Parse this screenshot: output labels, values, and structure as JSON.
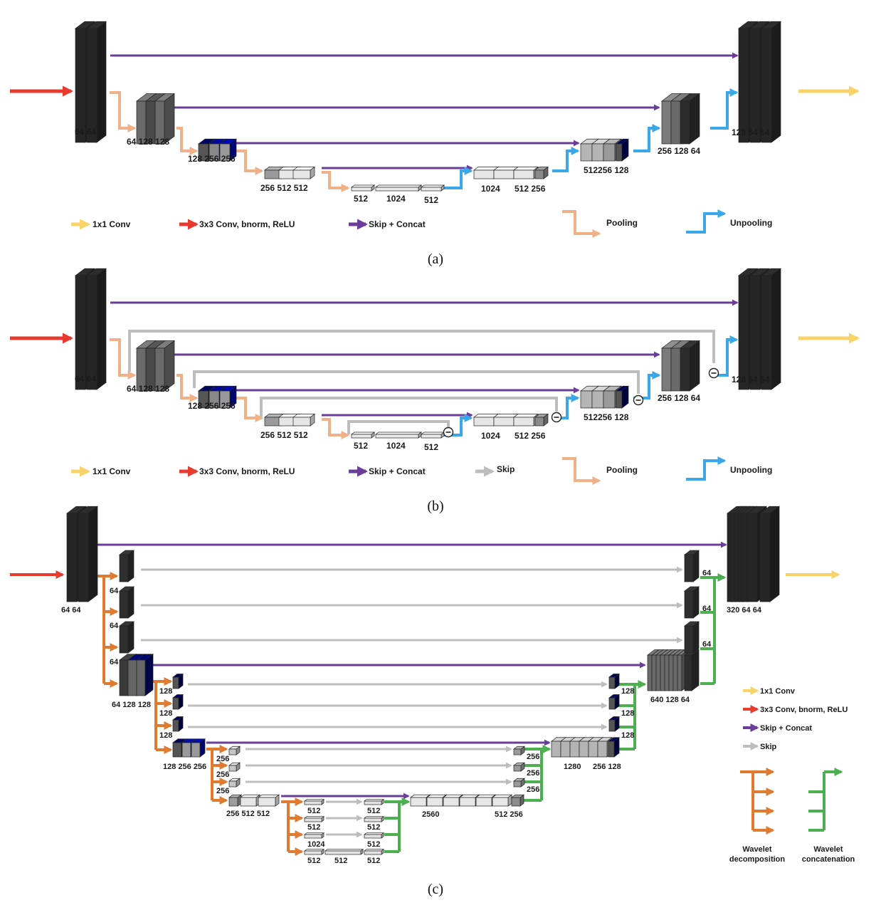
{
  "panels": [
    {
      "caption": "(a)",
      "legend": [
        "1x1 Conv",
        "3x3 Conv, bnorm, ReLU",
        "Skip + Concat",
        "Pooling",
        "Unpooling"
      ],
      "labels": [
        "64 64",
        "64 128 128",
        "128 256 256",
        "256 512 512",
        "512",
        "1024",
        "512",
        "1024",
        "512 256",
        "512256 128",
        "256 128 64",
        "128 64 64"
      ]
    },
    {
      "caption": "(b)",
      "legend": [
        "1x1 Conv",
        "3x3 Conv, bnorm, ReLU",
        "Skip + Concat",
        "Skip",
        "Pooling",
        "Unpooling"
      ],
      "labels": [
        "64 64",
        "64 128 128",
        "128 256 256",
        "256 512 512",
        "512",
        "1024",
        "512",
        "1024",
        "512 256",
        "512256 128",
        "256 128 64",
        "128 64 64"
      ]
    },
    {
      "caption": "(c)",
      "legend": [
        "1x1 Conv",
        "3x3 Conv, bnorm, ReLU",
        "Skip + Concat",
        "Skip",
        "Wavelet decomposition",
        "Wavelet concatenation"
      ],
      "labels": [
        "64 64",
        "64",
        "64",
        "64",
        "64 128 128",
        "128",
        "128",
        "128",
        "128 256 256",
        "256",
        "256",
        "256",
        "256 512 512",
        "512",
        "512",
        "512",
        "512",
        "1024",
        "512",
        "512",
        "512",
        "512",
        "2560",
        "512 256",
        "256",
        "256",
        "256",
        "1280",
        "256 128",
        "128",
        "128",
        "128",
        "640 128 64",
        "64",
        "64",
        "64",
        "320 64 64"
      ]
    }
  ],
  "colors": {
    "conv1x1": "#f7d36a",
    "conv3x3": "#e63b2e",
    "skip_concat": "#6a3d9a",
    "skip": "#bdbdbd",
    "pooling": "#f0b088",
    "unpooling": "#3aa8e8",
    "wavelet_decomposition": "#e07a2e",
    "wavelet_concatenation": "#4caf50"
  }
}
